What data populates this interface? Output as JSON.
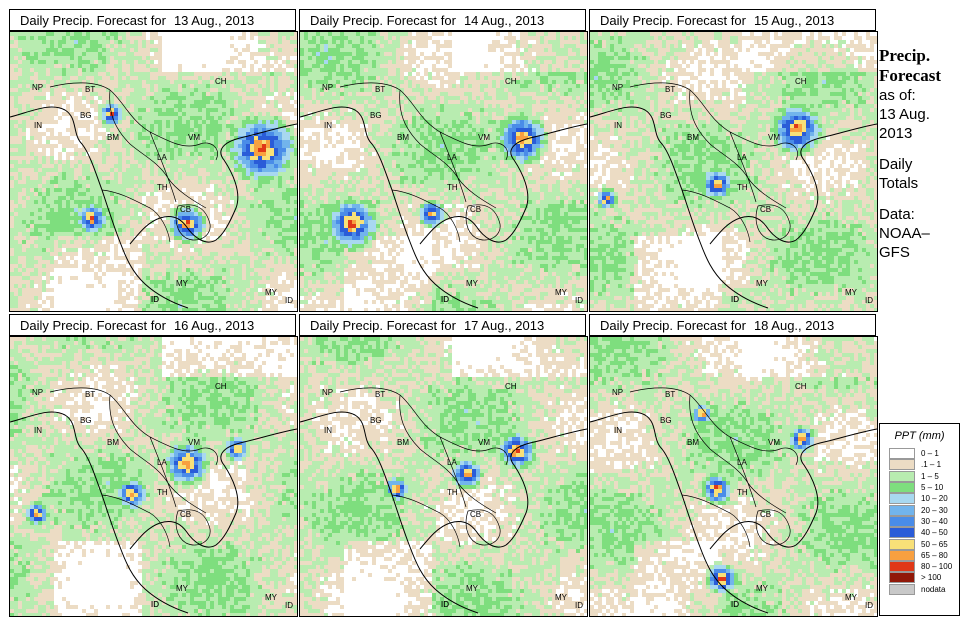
{
  "panels": [
    {
      "title": "Daily Precip. Forecast for",
      "date": "13 Aug., 2013"
    },
    {
      "title": "Daily Precip. Forecast for",
      "date": "14 Aug., 2013"
    },
    {
      "title": "Daily Precip. Forecast for",
      "date": "15 Aug., 2013"
    },
    {
      "title": "Daily Precip. Forecast for",
      "date": "16 Aug., 2013"
    },
    {
      "title": "Daily Precip. Forecast for",
      "date": "17 Aug., 2013"
    },
    {
      "title": "Daily Precip. Forecast for",
      "date": "18 Aug., 2013"
    }
  ],
  "map_labels": [
    "NP",
    "BT",
    "BG",
    "IN",
    "BM",
    "CH",
    "VM",
    "LA",
    "TH",
    "CB",
    "ID",
    "MY",
    "ID",
    "MY",
    "ID"
  ],
  "sidebar": {
    "title_line1": "Precip.",
    "title_line2": "Forecast",
    "asof": "as of:",
    "date_line1": "13 Aug.",
    "date_line2": "2013",
    "daily1": "Daily",
    "daily2": "Totals",
    "data1": "Data:",
    "data2": "NOAA–",
    "data3": "GFS"
  },
  "legend": {
    "title": "PPT (mm)",
    "items": [
      {
        "label": "0 – 1",
        "color": "#ffffff"
      },
      {
        "label": ".1 – 1",
        "color": "#ecdcc4"
      },
      {
        "label": "1 – 5",
        "color": "#b8ecb0"
      },
      {
        "label": "5 – 10",
        "color": "#7ede7e"
      },
      {
        "label": "10 – 20",
        "color": "#a8d8f0"
      },
      {
        "label": "20 – 30",
        "color": "#72b4ec"
      },
      {
        "label": "30 – 40",
        "color": "#4a8ce8"
      },
      {
        "label": "40 – 50",
        "color": "#2a5cd8"
      },
      {
        "label": "50 – 65",
        "color": "#f8e078"
      },
      {
        "label": "65 – 80",
        "color": "#f8a040"
      },
      {
        "label": "80 – 100",
        "color": "#e03818"
      },
      {
        "label": "> 100",
        "color": "#901808"
      },
      {
        "label": "nodata",
        "color": "#c8c8c8"
      }
    ]
  }
}
